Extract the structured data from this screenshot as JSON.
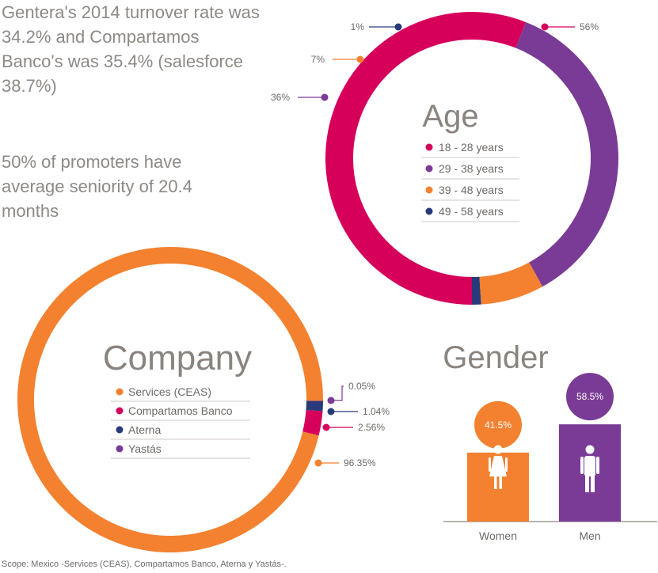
{
  "intro": {
    "turnover": "Gentera's 2014 turnover rate was 34.2% and Compartamos Banco's was 35.4% (salesforce 38.7%)",
    "promoters": "50% of promoters have average seniority of 20.4 months"
  },
  "footnote": "Scope: Mexico -Services (CEAS), Compartamos Banco, Aterna y Yastás-.",
  "colors": {
    "magenta": "#d6005b",
    "purple": "#7a3b96",
    "orange": "#f3812f",
    "navy": "#283a7a",
    "grey": "#8a847f"
  },
  "chart_data": [
    {
      "type": "donut",
      "title": "Age",
      "series": [
        {
          "name": "18 - 28 years",
          "value": 56,
          "label": "56%",
          "color": "#d6005b"
        },
        {
          "name": "29 - 38 years",
          "value": 36,
          "label": "36%",
          "color": "#7a3b96"
        },
        {
          "name": "39 - 48 years",
          "value": 7,
          "label": "7%",
          "color": "#f3812f"
        },
        {
          "name": "49 - 58 years",
          "value": 1,
          "label": "1%",
          "color": "#283a7a"
        }
      ]
    },
    {
      "type": "donut",
      "title": "Company",
      "series": [
        {
          "name": "Services (CEAS)",
          "value": 96.35,
          "label": "96.35%",
          "color": "#f3812f"
        },
        {
          "name": "Compartamos Banco",
          "value": 2.56,
          "label": "2.56%",
          "color": "#d6005b"
        },
        {
          "name": "Aterna",
          "value": 1.04,
          "label": "1.04%",
          "color": "#283a7a"
        },
        {
          "name": "Yastás",
          "value": 0.05,
          "label": "0.05%",
          "color": "#7a3b96"
        }
      ]
    },
    {
      "type": "bar",
      "title": "Gender",
      "categories": [
        "Women",
        "Men"
      ],
      "values": [
        41.5,
        58.5
      ],
      "labels": [
        "41.5%",
        "58.5%"
      ],
      "colors": [
        "#f3812f",
        "#7a3b96"
      ]
    }
  ]
}
